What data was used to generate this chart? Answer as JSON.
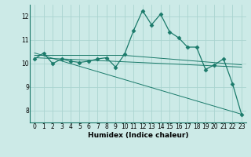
{
  "xlabel": "Humidex (Indice chaleur)",
  "background_color": "#cceae7",
  "grid_color": "#aad4d0",
  "line_color": "#1a7a6a",
  "xlim": [
    -0.5,
    23.5
  ],
  "ylim": [
    7.5,
    12.5
  ],
  "yticks": [
    8,
    9,
    10,
    11,
    12
  ],
  "xticks": [
    0,
    1,
    2,
    3,
    4,
    5,
    6,
    7,
    8,
    9,
    10,
    11,
    12,
    13,
    14,
    15,
    16,
    17,
    18,
    19,
    20,
    21,
    22,
    23
  ],
  "main_x": [
    0,
    1,
    2,
    3,
    4,
    5,
    6,
    7,
    8,
    9,
    10,
    11,
    12,
    13,
    14,
    15,
    16,
    17,
    18,
    19,
    20,
    21,
    22,
    23
  ],
  "main_y": [
    10.2,
    10.45,
    10.0,
    10.2,
    10.1,
    10.05,
    10.1,
    10.2,
    10.25,
    9.85,
    10.4,
    11.4,
    12.25,
    11.65,
    12.1,
    11.35,
    11.1,
    10.7,
    10.7,
    9.75,
    9.95,
    10.2,
    9.15,
    7.85
  ],
  "trend1_x": [
    0,
    23
  ],
  "trend1_y": [
    10.25,
    9.85
  ],
  "trend2_x": [
    0,
    10,
    23
  ],
  "trend2_y": [
    10.35,
    10.35,
    9.95
  ],
  "trend3_x": [
    0,
    23
  ],
  "trend3_y": [
    10.45,
    7.85
  ]
}
